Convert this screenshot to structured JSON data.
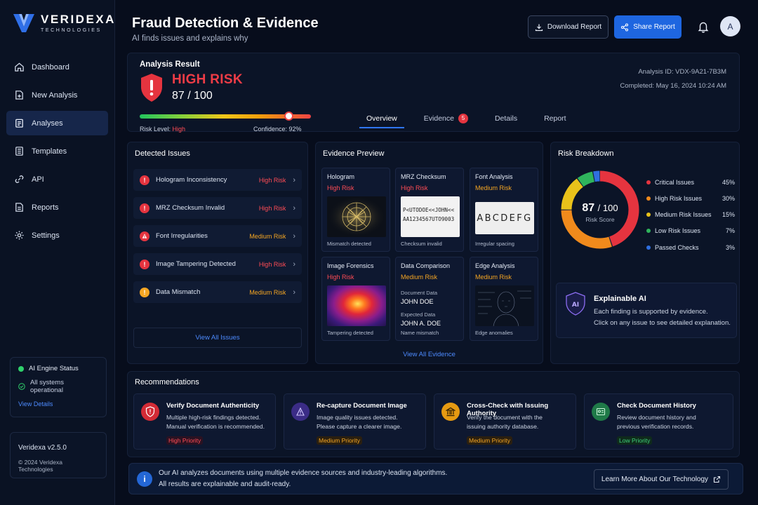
{
  "brand": {
    "name": "VERIDEXA",
    "sub": "TECHNOLOGIES"
  },
  "nav": [
    {
      "label": "Dashboard",
      "icon": "home-icon"
    },
    {
      "label": "New Analysis",
      "icon": "document-plus-icon"
    },
    {
      "label": "Analyses",
      "icon": "clipboard-icon",
      "active": true
    },
    {
      "label": "Templates",
      "icon": "template-icon"
    },
    {
      "label": "API",
      "icon": "link-icon"
    },
    {
      "label": "Reports",
      "icon": "report-icon"
    },
    {
      "label": "Settings",
      "icon": "gear-icon"
    }
  ],
  "engine": {
    "title": "AI Engine Status",
    "status": "All systems operational",
    "link": "View Details"
  },
  "version": {
    "name": "Veridexa v2.5.0",
    "copyright": "© 2024 Veridexa Technologies"
  },
  "header": {
    "title": "Fraud Detection & Evidence",
    "subtitle": "AI finds issues and explains why",
    "download": "Download Report",
    "share": "Share Report",
    "avatar": "A"
  },
  "analysis": {
    "label": "Analysis Result",
    "risk": "HIGH RISK",
    "score": "87 / 100",
    "risk_fraction": 0.87,
    "level_label": "Risk Level:",
    "level": "High",
    "confidence": "Confidence: 92%",
    "id": "Analysis ID: VDX-9A21-7B3M",
    "completed": "Completed: May 16, 2024 10:24 AM"
  },
  "tabs": [
    {
      "label": "Overview",
      "active": true
    },
    {
      "label": "Evidence",
      "badge": "5"
    },
    {
      "label": "Details"
    },
    {
      "label": "Report"
    }
  ],
  "issues": {
    "title": "Detected Issues",
    "items": [
      {
        "name": "Hologram Inconsistency",
        "risk": "High Risk",
        "level": "high",
        "icon": "alert-circle-icon",
        "glyph": "!"
      },
      {
        "name": "MRZ Checksum Invalid",
        "risk": "High Risk",
        "level": "high",
        "icon": "alert-circle-icon",
        "glyph": "!"
      },
      {
        "name": "Font Irregularities",
        "risk": "Medium Risk",
        "level": "high-tri",
        "icon": "warning-triangle-icon",
        "glyph": "!"
      },
      {
        "name": "Image Tampering Detected",
        "risk": "High Risk",
        "level": "high",
        "icon": "alert-circle-icon",
        "glyph": "!"
      },
      {
        "name": "Data Mismatch",
        "risk": "Medium Risk",
        "level": "medium",
        "icon": "info-circle-icon",
        "glyph": "!"
      }
    ],
    "view_all": "View All Issues"
  },
  "evidence": {
    "title": "Evidence Preview",
    "cards": [
      {
        "title": "Hologram",
        "risk": "High Risk",
        "level": "high",
        "caption": "Mismatch detected"
      },
      {
        "title": "MRZ Checksum",
        "risk": "High Risk",
        "level": "high",
        "caption": "Checksum invalid",
        "mrz1": "P<UTODOE<<JOHN<<",
        "mrz2": "AA1234567UTO9003"
      },
      {
        "title": "Font Analysis",
        "risk": "Medium Risk",
        "level": "medium",
        "caption": "Irregular spacing",
        "sample": "ABCDEFG"
      },
      {
        "title": "Image Forensics",
        "risk": "High Risk",
        "level": "high",
        "caption": "Tampering detected"
      },
      {
        "title": "Data Comparison",
        "risk": "Medium Risk",
        "level": "medium",
        "caption": "Name mismatch",
        "doc_label": "Document Data",
        "doc_value": "JOHN DOE",
        "exp_label": "Expected Data",
        "exp_value": "JOHN A. DOE"
      },
      {
        "title": "Edge Analysis",
        "risk": "Medium Risk",
        "level": "medium",
        "caption": "Edge anomalies"
      }
    ],
    "view_all": "View All Evidence"
  },
  "breakdown": {
    "title": "Risk Breakdown",
    "score": "87",
    "score_suffix": "/ 100",
    "score_label": "Risk Score",
    "items": [
      {
        "name": "Critical Issues",
        "pct": "45%",
        "value": 45,
        "color": "#e5343f"
      },
      {
        "name": "High Risk Issues",
        "pct": "30%",
        "value": 30,
        "color": "#f08a1c"
      },
      {
        "name": "Medium Risk Issues",
        "pct": "15%",
        "value": 15,
        "color": "#e9c21a"
      },
      {
        "name": "Low Risk Issues",
        "pct": "7%",
        "value": 7,
        "color": "#2fb45c"
      },
      {
        "name": "Passed Checks",
        "pct": "3%",
        "value": 3,
        "color": "#2f6fe0"
      }
    ]
  },
  "xai": {
    "title": "Explainable AI",
    "line1": "Each finding is supported by evidence.",
    "line2": "Click on any issue to see detailed explanation."
  },
  "recommendations": {
    "title": "Recommendations",
    "items": [
      {
        "title": "Verify Document Authenticity",
        "line1": "Multiple high-risk findings detected.",
        "line2": "Manual verification is recommended.",
        "priority": "High Priority",
        "level": "high"
      },
      {
        "title": "Re-capture Document Image",
        "line1": "Image quality issues detected.",
        "line2": "Please capture a clearer image.",
        "priority": "Medium Priority",
        "level": "medium"
      },
      {
        "title": "Cross-Check with Issuing Authority",
        "line1": "Verify the document with the",
        "line2": "issuing authority database.",
        "priority": "Medium Priority",
        "level": "medium"
      },
      {
        "title": "Check Document History",
        "line1": "Review document history and",
        "line2": "previous verification records.",
        "priority": "Low Priority",
        "level": "low"
      }
    ]
  },
  "footer": {
    "line1": "Our AI analyzes documents using multiple evidence sources and industry-leading algorithms.",
    "line2": "All results are explainable and audit-ready.",
    "button": "Learn More About Our Technology"
  }
}
